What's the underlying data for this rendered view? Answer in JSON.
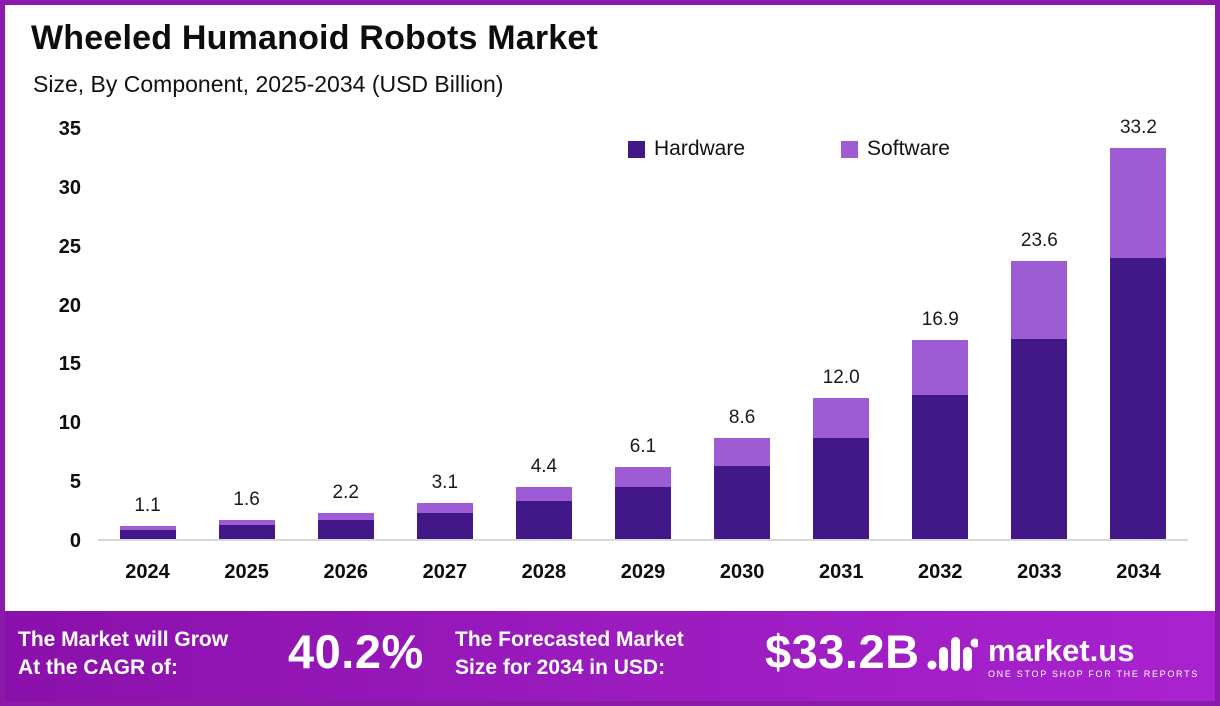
{
  "header": {
    "title": "Wheeled Humanoid Robots Market",
    "subtitle": "Size, By Component, 2025-2034 (USD Billion)"
  },
  "chart_data": {
    "type": "bar",
    "stacked": true,
    "title": "Wheeled Humanoid Robots Market Size, By Component, 2025-2034 (USD Billion)",
    "categories": [
      "2024",
      "2025",
      "2026",
      "2027",
      "2028",
      "2029",
      "2030",
      "2031",
      "2032",
      "2033",
      "2034"
    ],
    "series": [
      {
        "name": "Hardware",
        "color": "#421787",
        "values": [
          0.8,
          1.2,
          1.6,
          2.2,
          3.2,
          4.4,
          6.2,
          8.6,
          12.2,
          17.0,
          23.9
        ]
      },
      {
        "name": "Software",
        "color": "#9d5bd4",
        "values": [
          0.3,
          0.4,
          0.6,
          0.9,
          1.2,
          1.7,
          2.4,
          3.4,
          4.7,
          6.6,
          9.3
        ]
      }
    ],
    "totals": [
      1.1,
      1.6,
      2.2,
      3.1,
      4.4,
      6.1,
      8.6,
      12.0,
      16.9,
      23.6,
      33.2
    ],
    "total_labels": [
      "1.1",
      "1.6",
      "2.2",
      "3.1",
      "4.4",
      "6.1",
      "8.6",
      "12.0",
      "16.9",
      "23.6",
      "33.2"
    ],
    "ylim": [
      0,
      35
    ],
    "yticks": [
      0,
      5,
      10,
      15,
      20,
      25,
      30,
      35
    ],
    "xlabel": "",
    "ylabel": "",
    "grid": false,
    "legend_position": "top-center"
  },
  "footer": {
    "cagr_label_line1": "The Market will Grow",
    "cagr_label_line2": "At the CAGR of:",
    "cagr_value": "40.2%",
    "forecast_label_line1": "The Forecasted Market",
    "forecast_label_line2": "Size for 2034 in USD:",
    "forecast_value": "$33.2B",
    "brand": "market.us",
    "brand_tagline": "ONE STOP SHOP FOR THE REPORTS"
  },
  "colors": {
    "hardware": "#421787",
    "software": "#9d5bd4",
    "frame_border": "#8c1aa8",
    "footer_gradient_start": "#8a10ab",
    "footer_gradient_end": "#a922cf",
    "axis_line": "#d8d8d8",
    "text": "#0d0d0d"
  }
}
